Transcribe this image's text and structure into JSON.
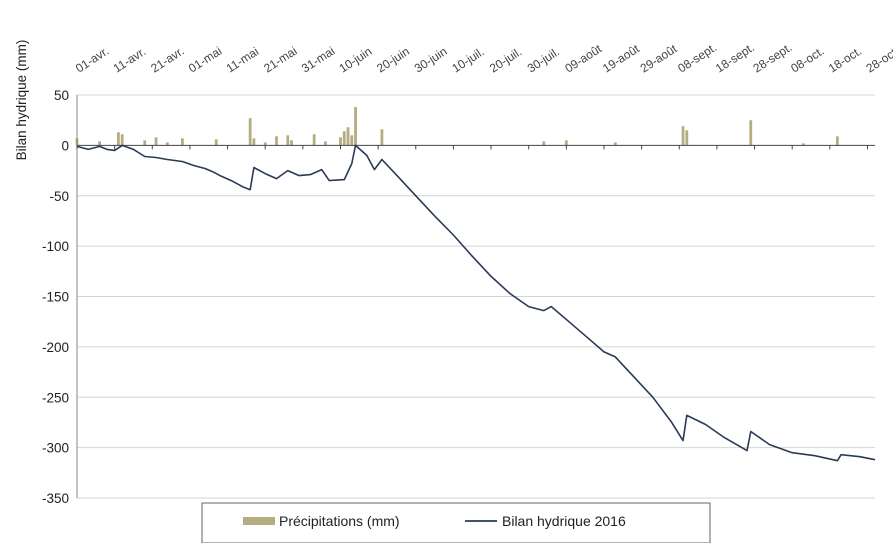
{
  "chart_data": {
    "type": "bar+line",
    "ylabel": "Bilan hydrique (mm)",
    "ylim": [
      -350,
      50
    ],
    "yticks": [
      50,
      0,
      -50,
      -100,
      -150,
      -200,
      -250,
      -300,
      -350
    ],
    "x_range": [
      "2016-04-01",
      "2016-10-30"
    ],
    "x_tick_labels": [
      {
        "date": "2016-04-01",
        "label": "01-avr."
      },
      {
        "date": "2016-04-11",
        "label": "11-avr."
      },
      {
        "date": "2016-04-21",
        "label": "21-avr."
      },
      {
        "date": "2016-05-01",
        "label": "01-mai"
      },
      {
        "date": "2016-05-11",
        "label": "11-mai"
      },
      {
        "date": "2016-05-21",
        "label": "21-mai"
      },
      {
        "date": "2016-05-31",
        "label": "31-mai"
      },
      {
        "date": "2016-06-10",
        "label": "10-juin"
      },
      {
        "date": "2016-06-20",
        "label": "20-juin"
      },
      {
        "date": "2016-06-30",
        "label": "30-juin"
      },
      {
        "date": "2016-07-10",
        "label": "10-juil."
      },
      {
        "date": "2016-07-20",
        "label": "20-juil."
      },
      {
        "date": "2016-07-30",
        "label": "30-juil."
      },
      {
        "date": "2016-08-09",
        "label": "09-août"
      },
      {
        "date": "2016-08-19",
        "label": "19-août"
      },
      {
        "date": "2016-08-29",
        "label": "29-août"
      },
      {
        "date": "2016-09-08",
        "label": "08-sept."
      },
      {
        "date": "2016-09-18",
        "label": "18-sept."
      },
      {
        "date": "2016-09-28",
        "label": "28-sept."
      },
      {
        "date": "2016-10-08",
        "label": "08-oct."
      },
      {
        "date": "2016-10-18",
        "label": "18-oct."
      },
      {
        "date": "2016-10-28",
        "label": "28-oct."
      }
    ],
    "grid": "horizontal",
    "legend_position": "bottom",
    "series": [
      {
        "name": "Précipitations (mm)",
        "type": "bar",
        "color": "#b5ac82",
        "points": [
          {
            "x": "2016-04-01",
            "y": 7
          },
          {
            "x": "2016-04-07",
            "y": 4
          },
          {
            "x": "2016-04-12",
            "y": 13
          },
          {
            "x": "2016-04-13",
            "y": 11
          },
          {
            "x": "2016-04-19",
            "y": 5
          },
          {
            "x": "2016-04-22",
            "y": 8
          },
          {
            "x": "2016-04-25",
            "y": 3
          },
          {
            "x": "2016-04-29",
            "y": 7
          },
          {
            "x": "2016-05-08",
            "y": 6
          },
          {
            "x": "2016-05-17",
            "y": 27
          },
          {
            "x": "2016-05-18",
            "y": 7
          },
          {
            "x": "2016-05-21",
            "y": 3
          },
          {
            "x": "2016-05-24",
            "y": 9
          },
          {
            "x": "2016-05-27",
            "y": 10
          },
          {
            "x": "2016-05-28",
            "y": 5
          },
          {
            "x": "2016-06-03",
            "y": 11
          },
          {
            "x": "2016-06-06",
            "y": 4
          },
          {
            "x": "2016-06-10",
            "y": 8
          },
          {
            "x": "2016-06-11",
            "y": 14
          },
          {
            "x": "2016-06-12",
            "y": 18
          },
          {
            "x": "2016-06-13",
            "y": 10
          },
          {
            "x": "2016-06-14",
            "y": 38
          },
          {
            "x": "2016-06-21",
            "y": 16
          },
          {
            "x": "2016-08-03",
            "y": 4
          },
          {
            "x": "2016-08-09",
            "y": 5
          },
          {
            "x": "2016-08-22",
            "y": 3
          },
          {
            "x": "2016-09-09",
            "y": 19
          },
          {
            "x": "2016-09-10",
            "y": 15
          },
          {
            "x": "2016-09-27",
            "y": 25
          },
          {
            "x": "2016-10-11",
            "y": 2
          },
          {
            "x": "2016-10-20",
            "y": 9
          }
        ]
      },
      {
        "name": "Bilan hydrique 2016",
        "type": "line",
        "color": "#2b3a57",
        "points": [
          {
            "x": "2016-04-01",
            "y": -1
          },
          {
            "x": "2016-04-04",
            "y": -4
          },
          {
            "x": "2016-04-07",
            "y": -1
          },
          {
            "x": "2016-04-09",
            "y": -4
          },
          {
            "x": "2016-04-11",
            "y": -5
          },
          {
            "x": "2016-04-13",
            "y": 0
          },
          {
            "x": "2016-04-16",
            "y": -4
          },
          {
            "x": "2016-04-19",
            "y": -11
          },
          {
            "x": "2016-04-22",
            "y": -12
          },
          {
            "x": "2016-04-25",
            "y": -14
          },
          {
            "x": "2016-04-29",
            "y": -16
          },
          {
            "x": "2016-05-02",
            "y": -20
          },
          {
            "x": "2016-05-05",
            "y": -23
          },
          {
            "x": "2016-05-07",
            "y": -26
          },
          {
            "x": "2016-05-09",
            "y": -30
          },
          {
            "x": "2016-05-12",
            "y": -35
          },
          {
            "x": "2016-05-15",
            "y": -41
          },
          {
            "x": "2016-05-17",
            "y": -44
          },
          {
            "x": "2016-05-18",
            "y": -22
          },
          {
            "x": "2016-05-21",
            "y": -28
          },
          {
            "x": "2016-05-24",
            "y": -33
          },
          {
            "x": "2016-05-27",
            "y": -25
          },
          {
            "x": "2016-05-30",
            "y": -30
          },
          {
            "x": "2016-06-02",
            "y": -29
          },
          {
            "x": "2016-06-05",
            "y": -24
          },
          {
            "x": "2016-06-07",
            "y": -35
          },
          {
            "x": "2016-06-11",
            "y": -34
          },
          {
            "x": "2016-06-13",
            "y": -18
          },
          {
            "x": "2016-06-14",
            "y": 0
          },
          {
            "x": "2016-06-17",
            "y": -10
          },
          {
            "x": "2016-06-19",
            "y": -24
          },
          {
            "x": "2016-06-21",
            "y": -14
          },
          {
            "x": "2016-06-25",
            "y": -30
          },
          {
            "x": "2016-06-30",
            "y": -50
          },
          {
            "x": "2016-07-05",
            "y": -70
          },
          {
            "x": "2016-07-10",
            "y": -89
          },
          {
            "x": "2016-07-15",
            "y": -110
          },
          {
            "x": "2016-07-20",
            "y": -130
          },
          {
            "x": "2016-07-25",
            "y": -147
          },
          {
            "x": "2016-07-30",
            "y": -160
          },
          {
            "x": "2016-08-03",
            "y": -164
          },
          {
            "x": "2016-08-05",
            "y": -160
          },
          {
            "x": "2016-08-10",
            "y": -176
          },
          {
            "x": "2016-08-15",
            "y": -192
          },
          {
            "x": "2016-08-19",
            "y": -205
          },
          {
            "x": "2016-08-22",
            "y": -210
          },
          {
            "x": "2016-08-27",
            "y": -230
          },
          {
            "x": "2016-09-01",
            "y": -250
          },
          {
            "x": "2016-09-06",
            "y": -275
          },
          {
            "x": "2016-09-09",
            "y": -293
          },
          {
            "x": "2016-09-10",
            "y": -268
          },
          {
            "x": "2016-09-15",
            "y": -277
          },
          {
            "x": "2016-09-20",
            "y": -290
          },
          {
            "x": "2016-09-26",
            "y": -303
          },
          {
            "x": "2016-09-27",
            "y": -284
          },
          {
            "x": "2016-10-02",
            "y": -297
          },
          {
            "x": "2016-10-08",
            "y": -305
          },
          {
            "x": "2016-10-14",
            "y": -308
          },
          {
            "x": "2016-10-20",
            "y": -313
          },
          {
            "x": "2016-10-21",
            "y": -307
          },
          {
            "x": "2016-10-26",
            "y": -309
          },
          {
            "x": "2016-10-30",
            "y": -312
          }
        ]
      }
    ]
  }
}
